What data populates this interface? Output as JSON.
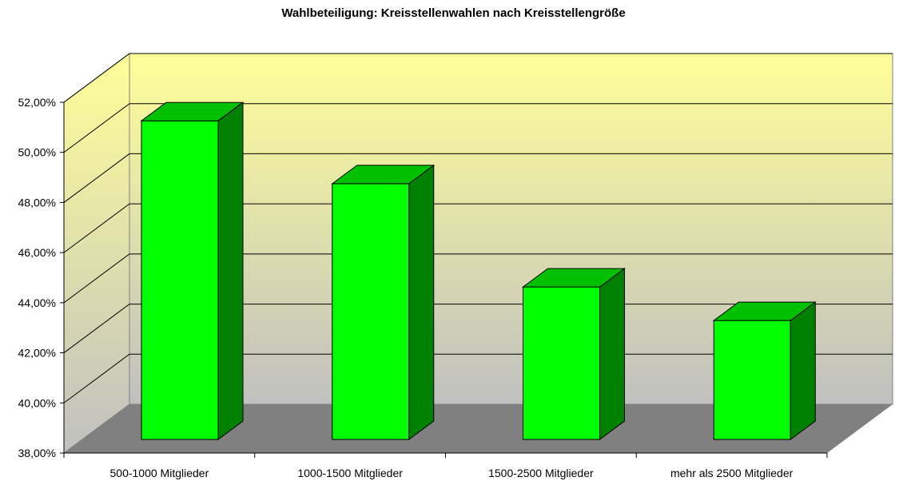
{
  "chart_data": {
    "type": "bar",
    "title": "Wahlbeteiligung: Kreisstellenwahlen nach Kreisstellengröße",
    "categories": [
      "500-1000 Mitglieder",
      "1000-1500 Mitglieder",
      "1500-2500 Mitglieder",
      "mehr als 2500 Mitglieder"
    ],
    "values": [
      51.26,
      48.75,
      44.63,
      43.29
    ],
    "ylim": [
      38,
      52
    ],
    "yticks": [
      38,
      40,
      42,
      44,
      46,
      48,
      50,
      52
    ],
    "ytick_labels": [
      "38,00%",
      "40,00%",
      "42,00%",
      "44,00%",
      "46,00%",
      "48,00%",
      "50,00%",
      "52,00%"
    ],
    "grid": true,
    "legend": "none",
    "three_d": true,
    "colors": {
      "bar_front": "#00ff00",
      "bar_top": "#00c000",
      "bar_side": "#008000",
      "floor": "#808080",
      "wall_top": "#ffff99",
      "wall_bottom": "#c0c0c0"
    }
  }
}
